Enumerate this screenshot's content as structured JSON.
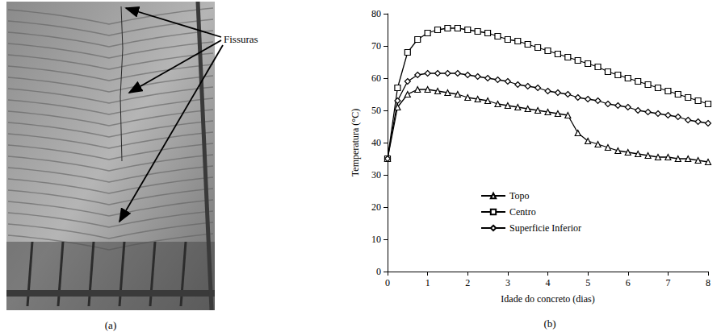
{
  "figure": {
    "panel_labels": [
      "(a)",
      "(b)"
    ],
    "photo": {
      "annotation": "Fissuras"
    }
  },
  "chart_data": {
    "type": "line",
    "x_label": "Idade do concreto (dias)",
    "y_label": "Temperatura (°C)",
    "x": [
      0,
      0.25,
      0.5,
      0.75,
      1,
      1.25,
      1.5,
      1.75,
      2,
      2.25,
      2.5,
      2.75,
      3,
      3.25,
      3.5,
      3.75,
      4,
      4.25,
      4.5,
      4.75,
      5,
      5.25,
      5.5,
      5.75,
      6,
      6.25,
      6.5,
      6.75,
      7,
      7.25,
      7.5,
      7.75,
      8
    ],
    "series": [
      {
        "name": "Topo",
        "color": "#000000",
        "marker": "triangle",
        "values": [
          35,
          51,
          55,
          56.5,
          56.5,
          56,
          55.5,
          55,
          54,
          53.5,
          53,
          52,
          51.5,
          51,
          50.5,
          50,
          49.5,
          49,
          48.5,
          43,
          40.5,
          39.5,
          38.5,
          37.5,
          37,
          36.5,
          36,
          35.5,
          35.5,
          35,
          35,
          34.5,
          34
        ]
      },
      {
        "name": "Centro",
        "color": "#000000",
        "marker": "square",
        "values": [
          35,
          57,
          68,
          72,
          74,
          75,
          75.5,
          75.5,
          75,
          74.5,
          74,
          73,
          72,
          71.5,
          70.5,
          69.5,
          68.5,
          67.5,
          66.5,
          65.5,
          64.5,
          63.5,
          62,
          61,
          60,
          59,
          58,
          57,
          56,
          55,
          54,
          53,
          52
        ]
      },
      {
        "name": "Superficie Inferior",
        "color": "#000000",
        "marker": "diamond",
        "values": [
          35,
          53,
          59,
          61,
          61.5,
          61.5,
          61.5,
          61.5,
          61,
          60.5,
          60,
          59.5,
          59,
          58,
          57.5,
          57,
          56,
          55.5,
          55,
          54,
          53.5,
          53,
          52,
          51.5,
          51,
          50,
          49.5,
          49,
          48.5,
          48,
          47,
          46.5,
          46
        ]
      }
    ],
    "xlim": [
      0,
      8
    ],
    "xticks": [
      0,
      1,
      2,
      3,
      4,
      5,
      6,
      7,
      8
    ],
    "ylim": [
      0,
      80
    ],
    "yticks": [
      0,
      10,
      20,
      30,
      40,
      50,
      60,
      70,
      80
    ],
    "grid": false,
    "legend": "bottom"
  }
}
